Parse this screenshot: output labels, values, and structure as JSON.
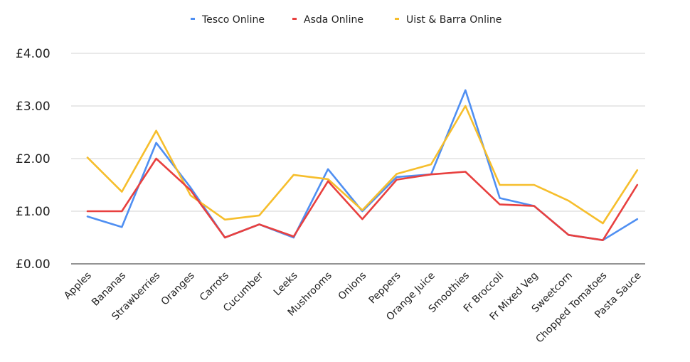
{
  "chart_data": {
    "type": "line",
    "categories": [
      "Apples",
      "Bananas",
      "Strawberries",
      "Oranges",
      "Carrots",
      "Cucumber",
      "Leeks",
      "Mushrooms",
      "Onions",
      "Peppers",
      "Orange Juice",
      "Smoothies",
      "Fr Broccoli",
      "Fr Mixed Veg",
      "Sweetcorn",
      "Chopped Tomatoes",
      "Pasta Sauce"
    ],
    "series": [
      {
        "name": "Tesco Online",
        "color": "#4f8ff2",
        "values": [
          0.9,
          0.7,
          2.3,
          1.45,
          0.5,
          0.75,
          0.5,
          1.8,
          1.0,
          1.65,
          1.7,
          3.3,
          1.25,
          1.1,
          0.55,
          0.45,
          0.85
        ]
      },
      {
        "name": "Asda Online",
        "color": "#e8403f",
        "values": [
          1.0,
          1.0,
          2.0,
          1.4,
          0.5,
          0.75,
          0.52,
          1.57,
          0.85,
          1.6,
          1.7,
          1.75,
          1.13,
          1.1,
          0.55,
          0.45,
          1.5
        ]
      },
      {
        "name": "Uist & Barra Online",
        "color": "#f6be2c",
        "values": [
          2.02,
          1.37,
          2.53,
          1.3,
          0.84,
          0.92,
          1.69,
          1.61,
          1.02,
          1.71,
          1.89,
          3.0,
          1.5,
          1.5,
          1.2,
          0.77,
          1.78
        ]
      }
    ],
    "y_ticks": [
      "£0.00",
      "£1.00",
      "£2.00",
      "£3.00",
      "£4.00"
    ],
    "ylim": [
      0,
      4
    ],
    "legend_position": "top-center",
    "grid": true
  }
}
